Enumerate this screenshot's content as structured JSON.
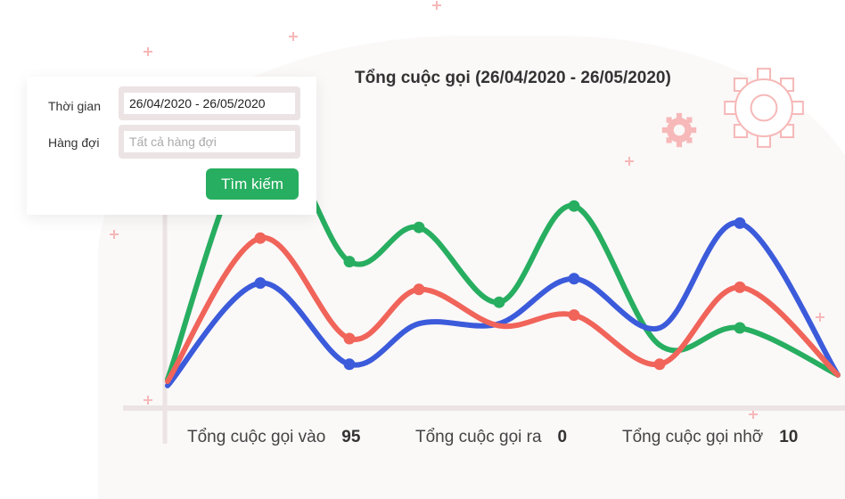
{
  "chart_data": {
    "type": "line",
    "title": "Tổng cuộc gọi (26/04/2020 - 26/05/2020)",
    "x": [
      0,
      1,
      2,
      3,
      4,
      5,
      6,
      7,
      8
    ],
    "series": [
      {
        "color": "#27ae60",
        "values": [
          6,
          121,
          61,
          77,
          42,
          87,
          22,
          30,
          8
        ],
        "markers": [
          2,
          3,
          4,
          5,
          7
        ]
      },
      {
        "color": "#3b5bdb",
        "values": [
          3,
          51,
          13,
          32,
          32,
          53,
          30,
          79,
          8
        ],
        "markers": [
          1,
          2,
          5,
          7
        ]
      },
      {
        "color": "#f0645a",
        "values": [
          5,
          72,
          25,
          48,
          31,
          36,
          13,
          49,
          8
        ],
        "markers": [
          1,
          2,
          3,
          5,
          6,
          7
        ]
      }
    ],
    "grid": false,
    "legend": "none"
  },
  "filter": {
    "time_label": "Thời gian",
    "time_value": "26/04/2020 - 26/05/2020",
    "queue_label": "Hàng đợi",
    "queue_placeholder": "Tất cả hàng đợi",
    "search_button": "Tìm kiếm",
    "accent": "#27ae60"
  },
  "stats": [
    {
      "label": "Tổng cuộc gọi vào",
      "value": "95"
    },
    {
      "label": "Tổng cuộc gọi ra",
      "value": "0"
    },
    {
      "label": "Tổng cuộc gọi nhỡ",
      "value": "10"
    }
  ],
  "decor": {
    "icons": [
      "gear-icon",
      "plus-icon"
    ],
    "color": "#f6b8b8"
  }
}
